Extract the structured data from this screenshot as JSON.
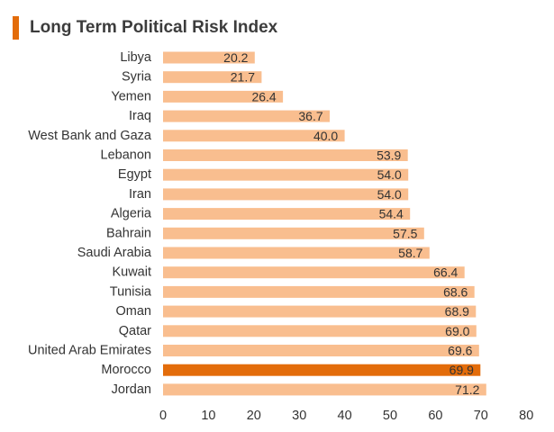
{
  "title": "Long Term Political Risk Index",
  "colors": {
    "accent": "#E36C0A",
    "bar": "#F9BE8F",
    "highlight_bar": "#E36C0A",
    "text": "#333333"
  },
  "chart_data": {
    "type": "bar",
    "orientation": "horizontal",
    "title": "Long Term Political Risk Index",
    "categories": [
      "Libya",
      "Syria",
      "Yemen",
      "Iraq",
      "West Bank and Gaza",
      "Lebanon",
      "Egypt",
      "Iran",
      "Algeria",
      "Bahrain",
      "Saudi Arabia",
      "Kuwait",
      "Tunisia",
      "Oman",
      "Qatar",
      "United Arab Emirates",
      "Morocco",
      "Jordan"
    ],
    "values": [
      20.2,
      21.7,
      26.4,
      36.7,
      40.0,
      53.9,
      54.0,
      54.0,
      54.4,
      57.5,
      58.7,
      66.4,
      68.6,
      68.9,
      69.0,
      69.6,
      69.9,
      71.2
    ],
    "value_labels": [
      "20.2",
      "21.7",
      "26.4",
      "36.7",
      "40.0",
      "53.9",
      "54.0",
      "54.0",
      "54.4",
      "57.5",
      "58.7",
      "66.4",
      "68.6",
      "68.9",
      "69.0",
      "69.6",
      "69.9",
      "71.2"
    ],
    "highlight": "Morocco",
    "xlim": [
      0,
      80
    ],
    "xticks": [
      0,
      10,
      20,
      30,
      40,
      50,
      60,
      70,
      80
    ],
    "grid": false,
    "legend": "none"
  }
}
